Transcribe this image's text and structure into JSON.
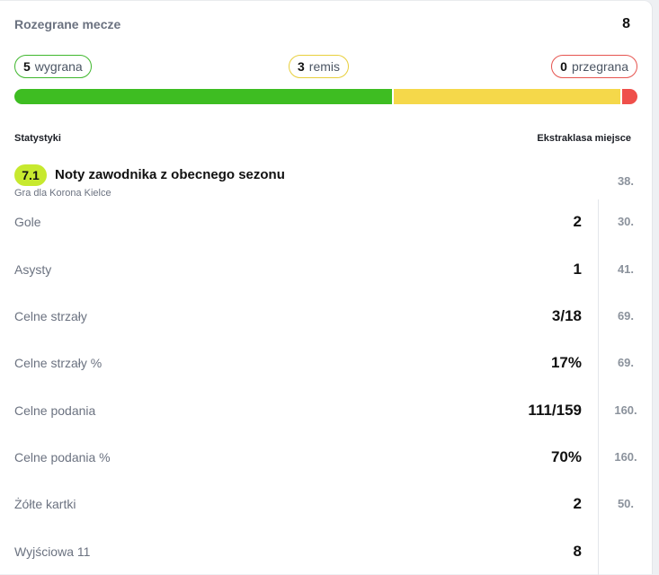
{
  "summary": {
    "played_label": "Rozegrane mecze",
    "played_value": "8",
    "wins": {
      "count": "5",
      "label": "wygrana"
    },
    "draws": {
      "count": "3",
      "label": "remis"
    },
    "losses": {
      "count": "0",
      "label": "przegrana"
    },
    "colors": {
      "win": "#3ebd22",
      "draw": "#f5d84a",
      "loss": "#ef4f4a"
    }
  },
  "stats_header": {
    "left": "Statystyki",
    "right": "Ekstraklasa miejsce"
  },
  "rating": {
    "value": "7.1",
    "title": "Noty zawodnika z obecnego sezonu",
    "subtitle": "Gra dla Korona Kielce",
    "rank": "38."
  },
  "stats": [
    {
      "label": "Gole",
      "value": "2",
      "rank": "30."
    },
    {
      "label": "Asysty",
      "value": "1",
      "rank": "41."
    },
    {
      "label": "Celne strzały",
      "value": "3/18",
      "rank": "69."
    },
    {
      "label": "Celne strzały %",
      "value": "17%",
      "rank": "69."
    },
    {
      "label": "Celne podania",
      "value": "111/159",
      "rank": "160."
    },
    {
      "label": "Celne podania %",
      "value": "70%",
      "rank": "160."
    },
    {
      "label": "Żółte kartki",
      "value": "2",
      "rank": "50."
    },
    {
      "label": "Wyjściowa 11",
      "value": "8",
      "rank": ""
    }
  ]
}
